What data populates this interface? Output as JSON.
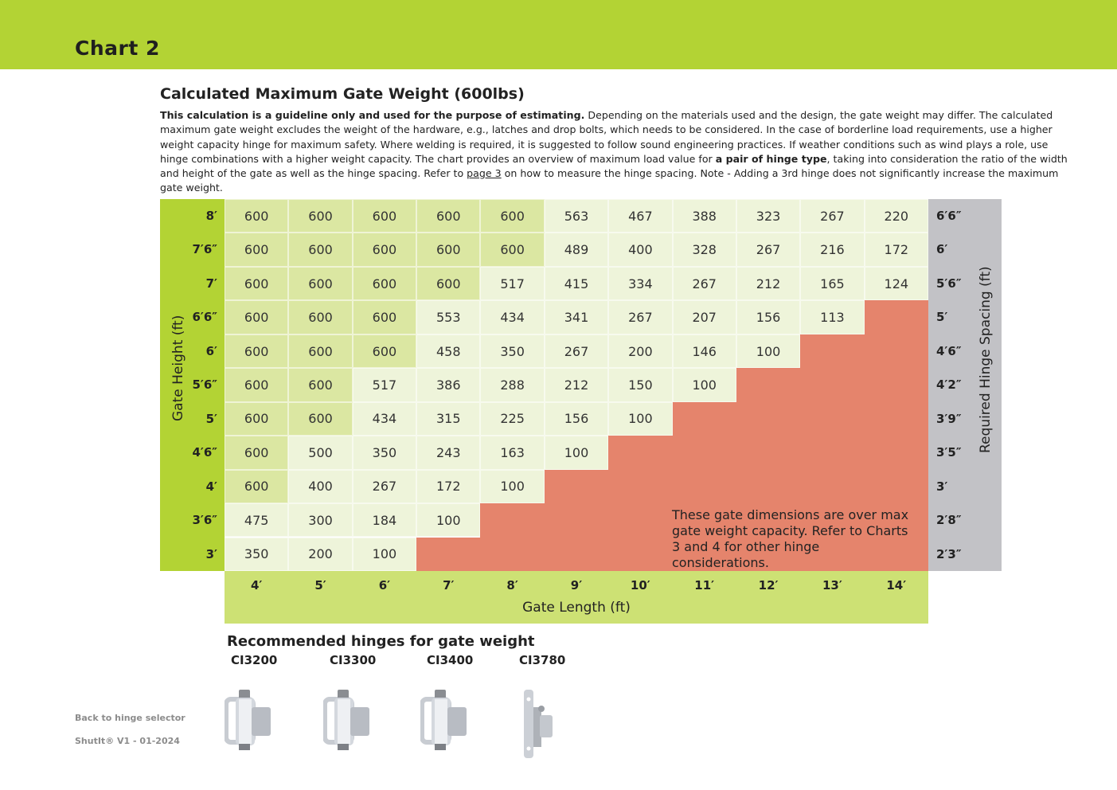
{
  "header": {
    "title": "Chart 2"
  },
  "section_title": "Calculated Maximum Gate Weight (600lbs)",
  "description": {
    "bold_intro": "This calculation is a guideline only and used for the purpose of estimating.",
    "part1": " Depending on the materials used and the design, the gate weight may differ. The calculated maximum gate weight excludes the weight of the hardware, e.g., latches and drop bolts, which needs to be considered. In the case of borderline load requirements, use a higher weight capacity hinge for maximum safety. Where welding is required, it is suggested to follow sound engineering practices. If weather conditions such as wind plays a role, use hinge combinations with a higher weight capacity. The chart provides an overview of maximum load value for ",
    "bold_pair": "a pair of hinge type",
    "part2": ", taking into consideration the ratio of the width and height of the gate as well as the hinge spacing. Refer to ",
    "link": "page 3",
    "part3": " on how to measure the hinge spacing. Note - Adding a 3rd hinge does not significantly increase the maximum gate weight."
  },
  "chart_data": {
    "type": "table",
    "xlabel": "Gate Length (ft)",
    "ylabel": "Gate Height (ft)",
    "y2label": "Required Hinge Spacing (ft)",
    "columns": [
      "4′",
      "5′",
      "6′",
      "7′",
      "8′",
      "9′",
      "10′",
      "11′",
      "12′",
      "13′",
      "14′"
    ],
    "rows": [
      "8′",
      "7′6″",
      "7′",
      "6′6″",
      "6′",
      "5′6″",
      "5′",
      "4′6″",
      "4′",
      "3′6″",
      "3′"
    ],
    "hinge_spacing": [
      "6′6″",
      "6′",
      "5′6″",
      "5′",
      "4′6″",
      "4′2″",
      "3′9″",
      "3′5″",
      "3′",
      "2′8″",
      "2′3″"
    ],
    "values": [
      [
        600,
        600,
        600,
        600,
        600,
        563,
        467,
        388,
        323,
        267,
        220
      ],
      [
        600,
        600,
        600,
        600,
        600,
        489,
        400,
        328,
        267,
        216,
        172
      ],
      [
        600,
        600,
        600,
        600,
        517,
        415,
        334,
        267,
        212,
        165,
        124
      ],
      [
        600,
        600,
        600,
        553,
        434,
        341,
        267,
        207,
        156,
        113
      ],
      [
        600,
        600,
        600,
        458,
        350,
        267,
        200,
        146,
        100
      ],
      [
        600,
        600,
        517,
        386,
        288,
        212,
        150,
        100
      ],
      [
        600,
        600,
        434,
        315,
        225,
        156,
        100
      ],
      [
        600,
        500,
        350,
        243,
        163,
        100
      ],
      [
        600,
        400,
        267,
        172,
        100
      ],
      [
        475,
        300,
        184,
        100
      ],
      [
        350,
        200,
        100
      ]
    ],
    "over_capacity_note": "These gate dimensions are over max gate weight capacity. Refer to Charts 3 and 4 for other hinge considerations.",
    "colors": {
      "max": "#dbe7a2",
      "below_max": "#eef4da",
      "over_capacity": "#e5846c",
      "spacing": "#c2c2c6",
      "axis": "#b3d334"
    }
  },
  "recommended": {
    "title": "Recommended hinges for gate weight",
    "hinges": [
      {
        "name": "CI3200"
      },
      {
        "name": "CI3300"
      },
      {
        "name": "CI3400"
      },
      {
        "name": "CI3780"
      }
    ]
  },
  "footer": {
    "back_link": "Back to hinge selector",
    "version": "ShutIt® V1 - 01-2024"
  }
}
